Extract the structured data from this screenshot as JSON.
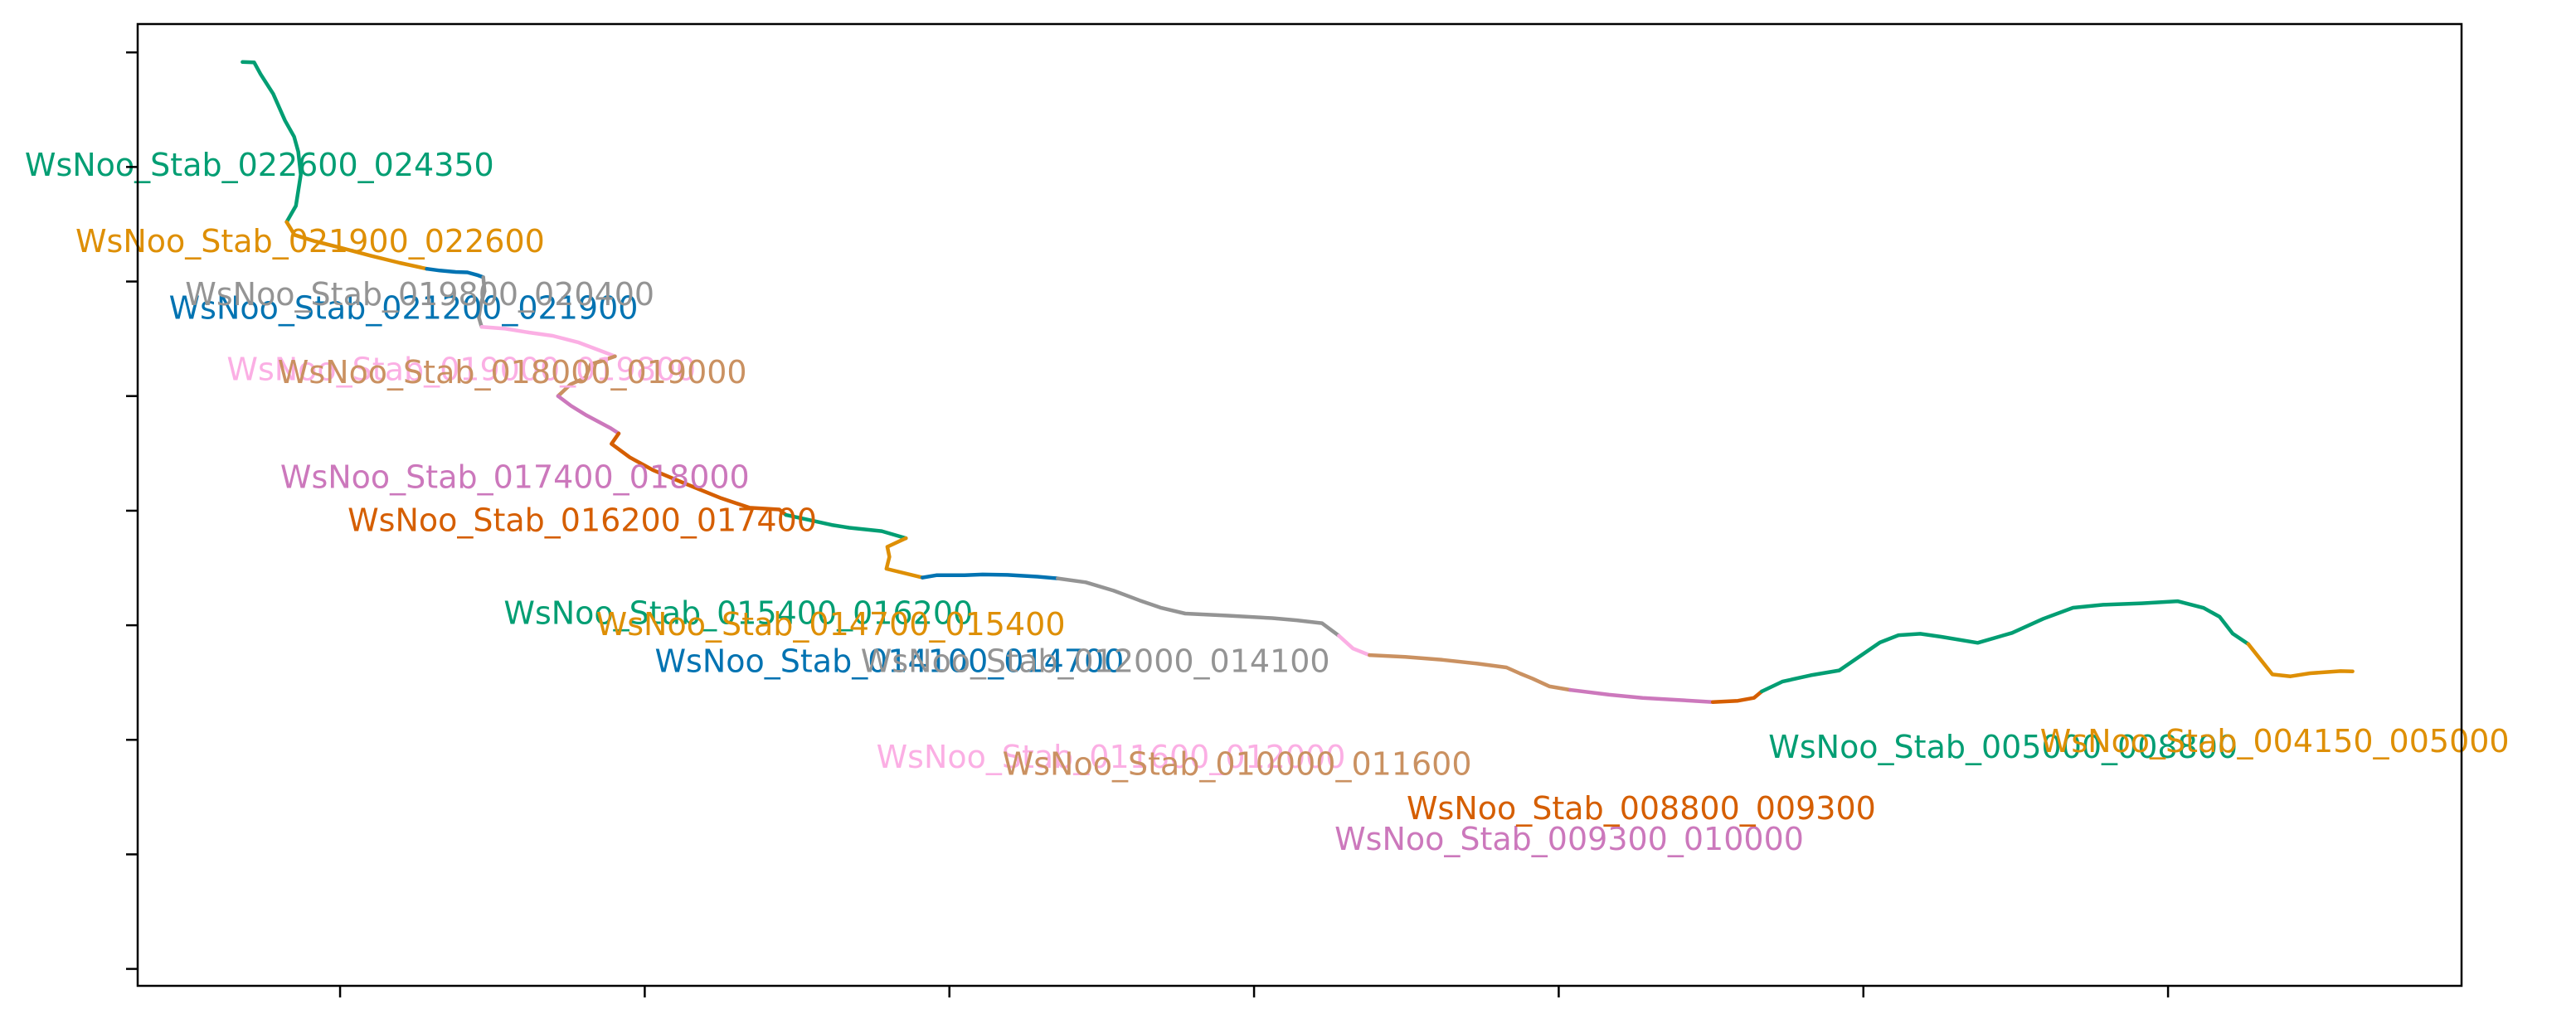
{
  "chart_data": {
    "type": "line",
    "title": "",
    "xlabel": "",
    "ylabel": "",
    "xlim": [
      0,
      1000
    ],
    "ylim": [
      0,
      1000
    ],
    "grid": false,
    "x_ticks": [
      87.1,
      218.2,
      349.3,
      480.4,
      611.5,
      742.6,
      873.7
    ],
    "y_ticks": [
      17.6,
      136.7,
      255.8,
      374.9,
      494.0,
      613.2,
      732.3,
      851.4,
      970.5
    ],
    "series": [
      {
        "name": "WsNoo_Stab_022600_024350",
        "color": "#029e73",
        "label_x": 52.4,
        "label_y": 851.1,
        "points": [
          [
            45.1,
            960.5
          ],
          [
            50.1,
            960.2
          ],
          [
            52.9,
            947.9
          ],
          [
            58.3,
            927.4
          ],
          [
            63.4,
            899.7
          ],
          [
            67.3,
            882.9
          ],
          [
            69.1,
            867.4
          ],
          [
            70.2,
            843.5
          ],
          [
            68.1,
            811.0
          ],
          [
            64.1,
            794.2
          ]
        ]
      },
      {
        "name": "WsNoo_Stab_021900_022600",
        "color": "#de8f05",
        "label_x": 74.2,
        "label_y": 771.8,
        "points": [
          [
            64.1,
            794.2
          ],
          [
            67.5,
            780.8
          ],
          [
            76.1,
            774.3
          ],
          [
            87.5,
            767.3
          ],
          [
            100.3,
            759.1
          ],
          [
            112.7,
            751.7
          ],
          [
            124.4,
            745.5
          ]
        ]
      },
      {
        "name": "WsNoo_Stab_021200_021900",
        "color": "#0173b2",
        "label_x": 114.4,
        "label_y": 702.6,
        "points": [
          [
            124.4,
            745.5
          ],
          [
            130.0,
            743.7
          ],
          [
            136.8,
            742.2
          ],
          [
            141.9,
            741.8
          ],
          [
            146.5,
            738.7
          ],
          [
            148.7,
            736.7
          ]
        ]
      },
      {
        "name": "WsNoo_Stab_019800_020400",
        "color": "#949494",
        "label_x": 121.4,
        "label_y": 716.7,
        "points": [
          [
            148.7,
            736.7
          ],
          [
            149.3,
            722.2
          ],
          [
            147.8,
            710.0
          ],
          [
            146.8,
            695.1
          ],
          [
            148.0,
            685.2
          ]
        ]
      },
      {
        "name": "WsNoo_Stab_019000_019800",
        "color": "#fbafe4",
        "label_x": 139.3,
        "label_y": 638.7,
        "points": [
          [
            148.0,
            685.2
          ],
          [
            158.2,
            683.3
          ],
          [
            168.3,
            679.3
          ],
          [
            178.6,
            675.9
          ],
          [
            189.8,
            668.9
          ],
          [
            199.6,
            659.9
          ],
          [
            205.4,
            654.6
          ]
        ]
      },
      {
        "name": "WsNoo_Stab_018000_019000",
        "color": "#ca9161",
        "label_x": 161.2,
        "label_y": 635.9,
        "points": [
          [
            205.4,
            654.6
          ],
          [
            199.8,
            649.7
          ],
          [
            195.0,
            646.4
          ],
          [
            192.7,
            632.2
          ],
          [
            186.3,
            625.4
          ],
          [
            183.3,
            618.6
          ],
          [
            180.9,
            613.2
          ]
        ]
      },
      {
        "name": "WsNoo_Stab_017400_018000",
        "color": "#cc78bc",
        "label_x": 162.3,
        "label_y": 526.8,
        "points": [
          [
            180.9,
            613.2
          ],
          [
            186.5,
            603.0
          ],
          [
            193.1,
            593.2
          ],
          [
            198.2,
            586.6
          ],
          [
            203.5,
            579.8
          ],
          [
            207.0,
            574.3
          ]
        ]
      },
      {
        "name": "WsNoo_Stab_016200_017400",
        "color": "#d55e00",
        "label_x": 191.3,
        "label_y": 481.9,
        "points": [
          [
            207.0,
            574.3
          ],
          [
            203.9,
            563.5
          ],
          [
            211.8,
            549.4
          ],
          [
            221.7,
            536.3
          ],
          [
            234.5,
            523.3
          ],
          [
            251.1,
            507.0
          ],
          [
            263.4,
            497.1
          ],
          [
            276.1,
            495.3
          ],
          [
            279.0,
            489.6
          ]
        ]
      },
      {
        "name": "WsNoo_Stab_015400_016200",
        "color": "#029e73",
        "label_x": 258.5,
        "label_y": 385.2,
        "points": [
          [
            279.0,
            489.6
          ],
          [
            289.3,
            484.2
          ],
          [
            298.6,
            479.2
          ],
          [
            306.2,
            476.3
          ],
          [
            320.2,
            472.8
          ],
          [
            330.6,
            465.4
          ]
        ]
      },
      {
        "name": "WsNoo_Stab_014700_015400",
        "color": "#de8f05",
        "label_x": 298.2,
        "label_y": 373.9,
        "points": [
          [
            330.6,
            465.4
          ],
          [
            322.6,
            456.5
          ],
          [
            323.5,
            446.0
          ],
          [
            322.2,
            433.6
          ],
          [
            337.7,
            424.5
          ]
        ]
      },
      {
        "name": "WsNoo_Stab_014100_014700",
        "color": "#0173b2",
        "label_x": 323.5,
        "label_y": 335.5,
        "points": [
          [
            337.7,
            424.5
          ],
          [
            343.7,
            426.9
          ],
          [
            355.8,
            427.0
          ],
          [
            363.6,
            427.7
          ],
          [
            374.3,
            427.2
          ],
          [
            387.2,
            425.4
          ],
          [
            395.9,
            423.6
          ]
        ]
      },
      {
        "name": "WsNoo_Stab_012000_014100",
        "color": "#949494",
        "label_x": 412.1,
        "label_y": 335.4,
        "points": [
          [
            395.9,
            423.6
          ],
          [
            408.0,
            419.6
          ],
          [
            420.0,
            410.9
          ],
          [
            431.2,
            400.7
          ],
          [
            440.2,
            393.2
          ],
          [
            450.8,
            387.1
          ],
          [
            469.1,
            384.9
          ],
          [
            488.2,
            382.3
          ],
          [
            498.8,
            380.1
          ],
          [
            509.6,
            377.1
          ],
          [
            516.9,
            364.0
          ]
        ]
      },
      {
        "name": "WsNoo_Stab_011600_012000",
        "color": "#fbafe4",
        "label_x": 418.8,
        "label_y": 235.9,
        "points": [
          [
            516.9,
            364.0
          ],
          [
            523.0,
            350.7
          ],
          [
            530.1,
            343.9
          ]
        ]
      },
      {
        "name": "WsNoo_Stab_010000_011600",
        "color": "#ca9161",
        "label_x": 473.1,
        "label_y": 228.3,
        "points": [
          [
            530.1,
            343.9
          ],
          [
            545.4,
            342.1
          ],
          [
            561.4,
            339.0
          ],
          [
            576.5,
            335.0
          ],
          [
            589.0,
            331.0
          ],
          [
            595.0,
            324.6
          ],
          [
            600.2,
            319.5
          ],
          [
            607.6,
            311.3
          ],
          [
            616.5,
            307.7
          ]
        ]
      },
      {
        "name": "WsNoo_Stab_009300_010000",
        "color": "#cc78bc",
        "label_x": 616.0,
        "label_y": 150.5,
        "points": [
          [
            616.5,
            307.7
          ],
          [
            633.2,
            302.7
          ],
          [
            647.6,
            299.4
          ],
          [
            661.6,
            297.4
          ],
          [
            677.8,
            295.1
          ]
        ]
      },
      {
        "name": "WsNoo_Stab_008800_009300",
        "color": "#d55e00",
        "label_x": 647.0,
        "label_y": 182.2,
        "points": [
          [
            677.8,
            295.1
          ],
          [
            688.6,
            296.4
          ],
          [
            695.5,
            299.4
          ],
          [
            698.9,
            306.1
          ]
        ]
      },
      {
        "name": "WsNoo_Stab_005000_008800",
        "color": "#029e73",
        "label_x": 802.7,
        "label_y": 246.2,
        "points": [
          [
            698.9,
            306.1
          ],
          [
            707.7,
            316.3
          ],
          [
            720.0,
            322.9
          ],
          [
            732.2,
            327.9
          ],
          [
            749.7,
            357.0
          ],
          [
            757.7,
            364.6
          ],
          [
            767.1,
            366.0
          ],
          [
            776.1,
            362.9
          ],
          [
            791.8,
            356.6
          ],
          [
            806.6,
            367.0
          ],
          [
            820.0,
            381.6
          ],
          [
            832.8,
            393.1
          ],
          [
            845.8,
            396.2
          ],
          [
            862.5,
            397.8
          ],
          [
            877.8,
            399.9
          ],
          [
            889.0,
            392.9
          ],
          [
            895.9,
            383.7
          ],
          [
            901.5,
            366.3
          ],
          [
            908.2,
            355.4
          ]
        ]
      },
      {
        "name": "WsNoo_Stab_004150_005000",
        "color": "#de8f05",
        "label_x": 919.6,
        "label_y": 252.2,
        "points": [
          [
            908.2,
            355.4
          ],
          [
            915.7,
            332.6
          ],
          [
            918.6,
            323.8
          ],
          [
            926.4,
            321.8
          ],
          [
            934.8,
            325.0
          ],
          [
            947.9,
            327.2
          ],
          [
            953.1,
            327.0
          ]
        ]
      }
    ]
  }
}
